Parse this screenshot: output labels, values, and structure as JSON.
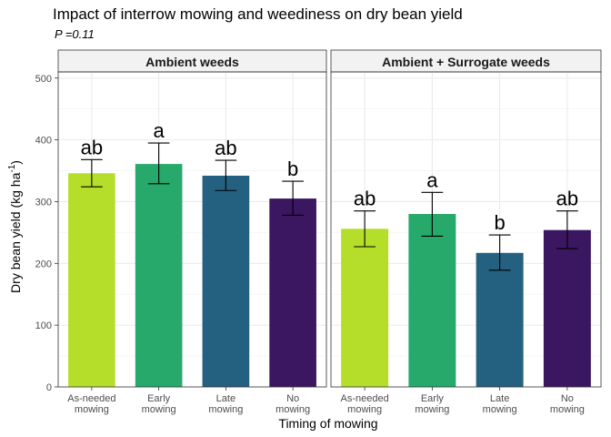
{
  "chart_data": {
    "type": "bar",
    "title": "Impact of interrow mowing and weediness on dry bean yield",
    "subtitle": "P =0.11",
    "xlabel": "Timing of mowing",
    "ylabel": "Dry bean yield (kg ha",
    "ylabel_superscript": "-1",
    "ylabel_suffix": ")",
    "ylim": [
      0,
      510
    ],
    "yticks": [
      0,
      100,
      200,
      300,
      400,
      500
    ],
    "grid": true,
    "categories": [
      "As-needed mowing",
      "Early mowing",
      "Late mowing",
      "No mowing"
    ],
    "category_lines": [
      [
        "As-needed",
        "mowing"
      ],
      [
        "Early",
        "mowing"
      ],
      [
        "Late",
        "mowing"
      ],
      [
        "No",
        "mowing"
      ]
    ],
    "colors": [
      "#b5de2b",
      "#26a96b",
      "#24607f",
      "#3b1661"
    ],
    "panels": [
      {
        "name": "Ambient weeds",
        "values": [
          346,
          361,
          342,
          305
        ],
        "error_low": [
          324,
          329,
          318,
          278
        ],
        "error_high": [
          368,
          395,
          367,
          333
        ],
        "labels": [
          "ab",
          "a",
          "ab",
          "b"
        ]
      },
      {
        "name": "Ambient + Surrogate weeds",
        "values": [
          256,
          280,
          217,
          254
        ],
        "error_low": [
          227,
          244,
          189,
          224
        ],
        "error_high": [
          285,
          315,
          246,
          285
        ],
        "labels": [
          "ab",
          "a",
          "b",
          "ab"
        ]
      }
    ]
  }
}
